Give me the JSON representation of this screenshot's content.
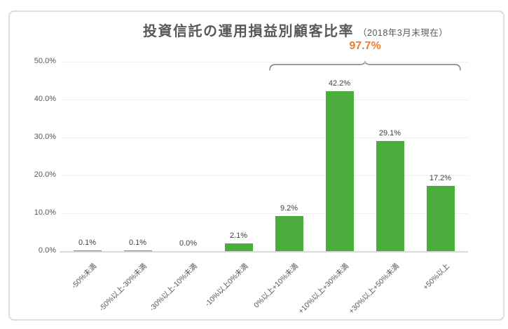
{
  "title": {
    "text": "投資信託の運用損益別顧客比率",
    "subtitle": "（2018年3月末現在）"
  },
  "annotation": {
    "text": "97.7%"
  },
  "colors": {
    "bar_green": "#4BAE3C",
    "annotation_orange": "#ED7D31",
    "text_gray": "#595959",
    "axis_gray": "#D9D9D9"
  },
  "chart_data": {
    "type": "bar",
    "title": "投資信託の運用損益別顧客比率",
    "subtitle": "（2018年3月末現在）",
    "categories": [
      "-50%未満",
      "-50%以上-30%未満",
      "-30%以上-10%未満",
      "-10%以上0%未満",
      "0%以上+10%未満",
      "+10%以上+30%未満",
      "+30%以上+50%未満",
      "+50%以上"
    ],
    "values": [
      0.1,
      0.1,
      0.0,
      2.1,
      9.2,
      42.2,
      29.1,
      17.2
    ],
    "data_labels": [
      "0.1%",
      "0.1%",
      "0.0%",
      "2.1%",
      "9.2%",
      "42.2%",
      "29.1%",
      "17.2%"
    ],
    "y_ticks": [
      "0.0%",
      "10.0%",
      "20.0%",
      "30.0%",
      "40.0%",
      "50.0%"
    ],
    "ylim": [
      0,
      50
    ],
    "xlabel": "",
    "ylabel": "",
    "grid": true,
    "legend": false,
    "bar_color": "#4BAE3C",
    "annotation": {
      "text": "97.7%",
      "color": "#ED7D31",
      "span_categories": [
        "0%以上+10%未満",
        "+10%以上+30%未満",
        "+30%以上+50%未満",
        "+50%以上"
      ]
    }
  }
}
